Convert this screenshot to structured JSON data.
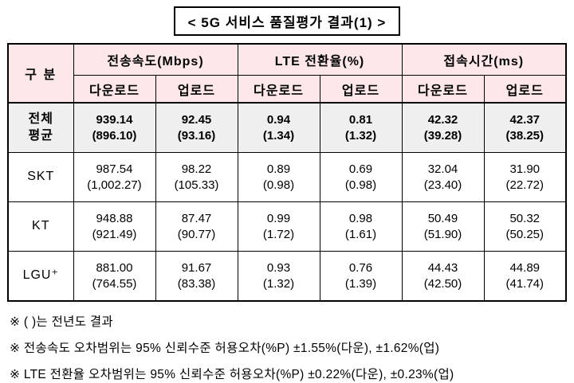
{
  "chart_data": {
    "type": "table",
    "title": "< 5G 서비스 품질평가 결과(1) >",
    "corner_header": "구 분",
    "group_headers": [
      "전송속도(Mbps)",
      "LTE 전환율(%)",
      "접속시간(ms)"
    ],
    "subheaders": [
      "다운로드",
      "업로드",
      "다운로드",
      "업로드",
      "다운로드",
      "업로드"
    ],
    "rows": [
      {
        "label": "전체\n평균",
        "cells": [
          {
            "v": "939.14",
            "p": "(896.10)"
          },
          {
            "v": "92.45",
            "p": "(93.16)"
          },
          {
            "v": "0.94",
            "p": "(1.34)"
          },
          {
            "v": "0.81",
            "p": "(1.32)"
          },
          {
            "v": "42.32",
            "p": "(39.28)"
          },
          {
            "v": "42.37",
            "p": "(38.25)"
          }
        ]
      },
      {
        "label": "SKT",
        "cells": [
          {
            "v": "987.54",
            "p": "(1,002.27)"
          },
          {
            "v": "98.22",
            "p": "(105.33)"
          },
          {
            "v": "0.89",
            "p": "(0.98)"
          },
          {
            "v": "0.69",
            "p": "(0.98)"
          },
          {
            "v": "32.04",
            "p": "(23.40)"
          },
          {
            "v": "31.90",
            "p": "(22.72)"
          }
        ]
      },
      {
        "label": "KT",
        "cells": [
          {
            "v": "948.88",
            "p": "(921.49)"
          },
          {
            "v": "87.47",
            "p": "(90.77)"
          },
          {
            "v": "0.99",
            "p": "(1.72)"
          },
          {
            "v": "0.98",
            "p": "(1.61)"
          },
          {
            "v": "50.49",
            "p": "(51.90)"
          },
          {
            "v": "50.32",
            "p": "(50.25)"
          }
        ]
      },
      {
        "label": "LGU⁺",
        "cells": [
          {
            "v": "881.00",
            "p": "(764.55)"
          },
          {
            "v": "91.67",
            "p": "(83.38)"
          },
          {
            "v": "0.93",
            "p": "(1.32)"
          },
          {
            "v": "0.76",
            "p": "(1.39)"
          },
          {
            "v": "44.43",
            "p": "(42.50)"
          },
          {
            "v": "44.89",
            "p": "(41.74)"
          }
        ]
      }
    ],
    "footnotes": [
      "※ ( )는 전년도 결과",
      "※ 전송속도 오차범위는 95% 신뢰수준 허용오차(%P) ±1.55%(다운), ±1.62%(업)",
      "※ LTE 전환율 오차범위는 95% 신뢰수준 허용오차(%P) ±0.22%(다운), ±0.23%(업)"
    ]
  },
  "colors": {
    "header_bg": "#fde7e9",
    "avg_row_bg": "#efefef",
    "border": "#000000"
  }
}
